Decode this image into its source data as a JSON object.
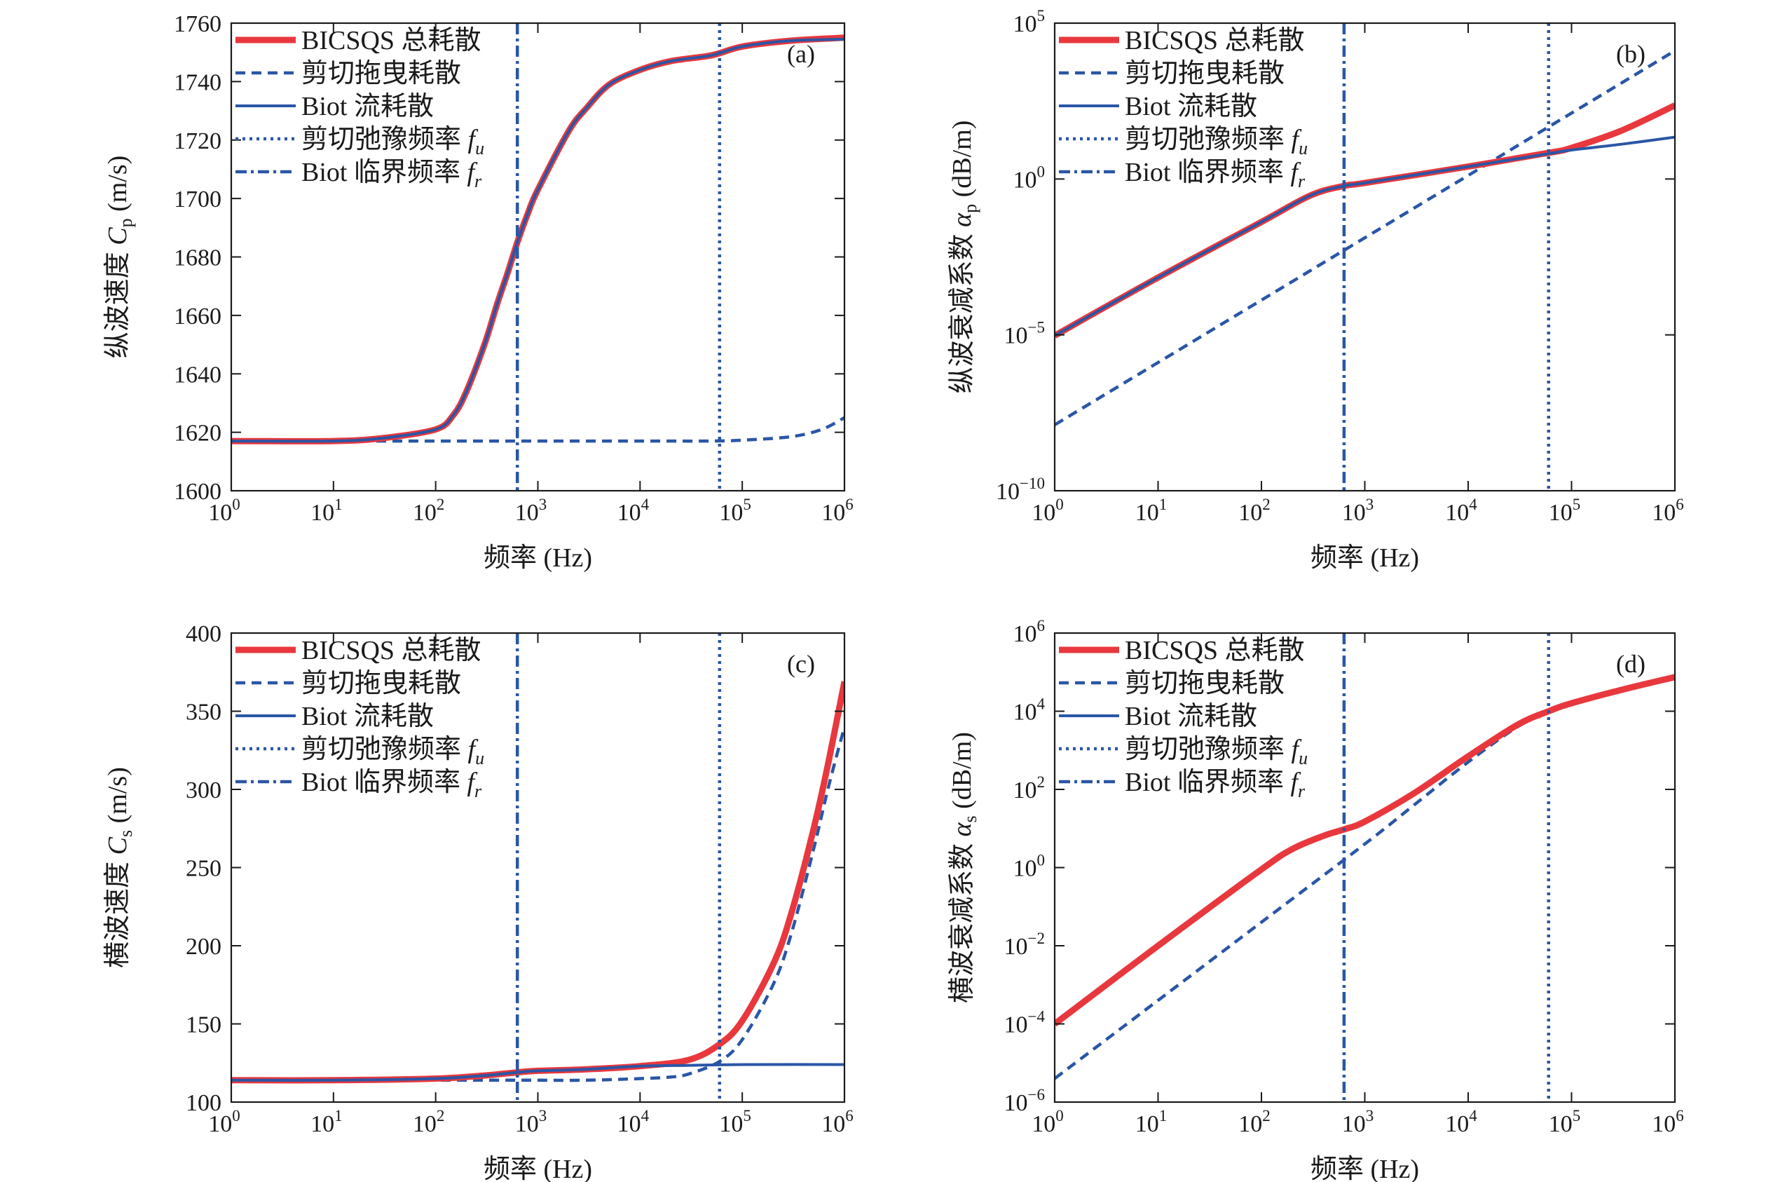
{
  "chart_data": [
    {
      "type": "line",
      "panel": "(a)",
      "xlabel": "频率 (Hz)",
      "xscale": "log",
      "xlim": [
        1,
        1000000
      ],
      "yscale": "linear",
      "ylim": [
        1600,
        1760
      ],
      "ylabel_parts": [
        {
          "t": "纵波速度 ",
          "i": false
        },
        {
          "t": "C",
          "i": true
        },
        {
          "t": "p",
          "sub": true
        },
        {
          "t": " (m/s)",
          "i": false
        }
      ],
      "yticks": [
        {
          "v": 1600,
          "label": "1600"
        },
        {
          "v": 1620,
          "label": "1620"
        },
        {
          "v": 1640,
          "label": "1640"
        },
        {
          "v": 1660,
          "label": "1660"
        },
        {
          "v": 1680,
          "label": "1680"
        },
        {
          "v": 1700,
          "label": "1700"
        },
        {
          "v": 1720,
          "label": "1720"
        },
        {
          "v": 1740,
          "label": "1740"
        },
        {
          "v": 1760,
          "label": "1760"
        }
      ],
      "legend": "top-left",
      "vlines": [
        {
          "x": 60000,
          "style": "dotted"
        },
        {
          "x": 630,
          "style": "dashdot"
        }
      ],
      "series": [
        {
          "name": "BICSQS 总耗散",
          "style": "solid-red",
          "x": [
            1,
            10,
            30,
            100,
            150,
            200,
            300,
            400,
            500,
            630,
            800,
            1000,
            2000,
            3000,
            5000,
            10000,
            20000,
            50000,
            100000,
            300000,
            1000000
          ],
          "y": [
            1617,
            1617,
            1618,
            1621,
            1626,
            1634,
            1650,
            1664,
            1674,
            1685,
            1695,
            1703,
            1723,
            1731,
            1739,
            1744,
            1747,
            1749,
            1752,
            1754,
            1755
          ]
        },
        {
          "name": "剪切拖曳耗散",
          "style": "dashed-blue",
          "x": [
            1,
            10,
            100,
            1000,
            10000,
            50000,
            100000,
            300000,
            600000,
            1000000
          ],
          "y": [
            1617,
            1617,
            1617,
            1617,
            1617,
            1617,
            1617.3,
            1618.5,
            1621,
            1625
          ]
        },
        {
          "name": "Biot 流耗散",
          "style": "solid-blue",
          "x": [
            1,
            10,
            30,
            100,
            150,
            200,
            300,
            400,
            500,
            630,
            800,
            1000,
            2000,
            3000,
            5000,
            10000,
            20000,
            50000,
            100000,
            300000,
            1000000
          ],
          "y": [
            1617,
            1617,
            1618,
            1621,
            1626,
            1634,
            1650,
            1664,
            1674,
            1685,
            1695,
            1703,
            1723,
            1731,
            1739,
            1744,
            1747,
            1749,
            1752,
            1754,
            1754.5
          ]
        },
        {
          "name": "剪切弛豫频率 ",
          "sym": "f",
          "symsub": "u",
          "style": "dotted-blue",
          "legend_only": true
        },
        {
          "name": "Biot 临界频率 ",
          "sym": "f",
          "symsub": "r",
          "style": "dashdot-blue",
          "legend_only": true
        }
      ]
    },
    {
      "type": "line",
      "panel": "(b)",
      "xlabel": "频率 (Hz)",
      "xscale": "log",
      "xlim": [
        1,
        1000000
      ],
      "yscale": "log",
      "ylim": [
        1e-10,
        100000
      ],
      "ylabel_parts": [
        {
          "t": "纵波衰减系数 ",
          "i": false
        },
        {
          "t": "α",
          "i": true
        },
        {
          "t": "p",
          "sub": true
        },
        {
          "t": " (dB/m)",
          "i": false
        }
      ],
      "yticks": [
        {
          "v": 1e-10,
          "base": "10",
          "exp": "−10"
        },
        {
          "v": 1e-05,
          "base": "10",
          "exp": "−5"
        },
        {
          "v": 1,
          "label": "10⁰"
        },
        {
          "v": 100000,
          "base": "10",
          "exp": "5"
        }
      ],
      "legend": "top-left",
      "vlines": [
        {
          "x": 60000,
          "style": "dotted"
        },
        {
          "x": 630,
          "style": "dashdot"
        }
      ],
      "series": [
        {
          "name": "BICSQS 总耗散",
          "style": "solid-red",
          "x": [
            1,
            10,
            100,
            300,
            630,
            1000,
            10000,
            60000,
            100000,
            300000,
            1000000
          ],
          "y": [
            9.5e-06,
            0.00069,
            0.042,
            0.3,
            0.6,
            0.75,
            2.5,
            6.9,
            10,
            35,
            230
          ]
        },
        {
          "name": "剪切拖曳耗散",
          "style": "dashed-blue",
          "x": [
            1,
            10,
            100,
            1000,
            10000,
            100000,
            1000000
          ],
          "y": [
            1.3e-08,
            1.3e-06,
            0.00013,
            0.013,
            1.3,
            130,
            13000
          ]
        },
        {
          "name": "Biot 流耗散",
          "style": "solid-blue",
          "x": [
            1,
            10,
            100,
            300,
            630,
            1000,
            10000,
            60000,
            100000,
            300000,
            1000000
          ],
          "y": [
            9.5e-06,
            0.00069,
            0.042,
            0.3,
            0.6,
            0.75,
            2.5,
            6.5,
            8.5,
            13,
            22
          ]
        },
        {
          "name": "剪切弛豫频率 ",
          "sym": "f",
          "symsub": "u",
          "style": "dotted-blue",
          "legend_only": true
        },
        {
          "name": "Biot 临界频率 ",
          "sym": "f",
          "symsub": "r",
          "style": "dashdot-blue",
          "legend_only": true
        }
      ]
    },
    {
      "type": "line",
      "panel": "(c)",
      "xlabel": "频率 (Hz)",
      "xscale": "log",
      "xlim": [
        1,
        1000000
      ],
      "yscale": "linear",
      "ylim": [
        100,
        400
      ],
      "ylabel_parts": [
        {
          "t": "横波速度 ",
          "i": false
        },
        {
          "t": "C",
          "i": true
        },
        {
          "t": "s",
          "sub": true
        },
        {
          "t": " (m/s)",
          "i": false
        }
      ],
      "yticks": [
        {
          "v": 100,
          "label": "100"
        },
        {
          "v": 150,
          "label": "150"
        },
        {
          "v": 200,
          "label": "200"
        },
        {
          "v": 250,
          "label": "250"
        },
        {
          "v": 300,
          "label": "300"
        },
        {
          "v": 350,
          "label": "350"
        },
        {
          "v": 400,
          "label": "400"
        }
      ],
      "legend": "top-left",
      "vlines": [
        {
          "x": 60000,
          "style": "dotted"
        },
        {
          "x": 630,
          "style": "dashdot"
        }
      ],
      "series": [
        {
          "name": "BICSQS 总耗散",
          "style": "solid-red",
          "x": [
            1,
            10,
            100,
            300,
            630,
            1000,
            3000,
            10000,
            30000,
            60000,
            100000,
            200000,
            300000,
            500000,
            700000,
            1000000
          ],
          "y": [
            114,
            114,
            115,
            117,
            119,
            120,
            121,
            123,
            127,
            137,
            152,
            188,
            220,
            275,
            318,
            369
          ]
        },
        {
          "name": "剪切拖曳耗散",
          "style": "dashed-blue",
          "x": [
            1,
            10,
            100,
            300,
            630,
            1000,
            3000,
            10000,
            20000,
            30000,
            60000,
            100000,
            200000,
            300000,
            500000,
            700000,
            1000000
          ],
          "y": [
            114,
            114,
            114,
            114,
            114,
            114,
            114,
            115,
            116,
            118,
            126,
            140,
            175,
            207,
            262,
            302,
            340
          ]
        },
        {
          "name": "Biot 流耗散",
          "style": "solid-blue",
          "x": [
            1,
            10,
            100,
            300,
            630,
            1000,
            3000,
            10000,
            30000,
            100000,
            1000000
          ],
          "y": [
            114,
            114,
            115,
            117,
            119,
            120,
            121,
            123,
            123.5,
            124,
            124
          ]
        },
        {
          "name": "剪切弛豫频率 ",
          "sym": "f",
          "symsub": "u",
          "style": "dotted-blue",
          "legend_only": true
        },
        {
          "name": "Biot 临界频率 ",
          "sym": "f",
          "symsub": "r",
          "style": "dashdot-blue",
          "legend_only": true
        }
      ]
    },
    {
      "type": "line",
      "panel": "(d)",
      "xlabel": "频率 (Hz)",
      "xscale": "log",
      "xlim": [
        1,
        1000000
      ],
      "yscale": "log",
      "ylim": [
        1e-06,
        1000000
      ],
      "ylabel_parts": [
        {
          "t": "横波衰减系数 ",
          "i": false
        },
        {
          "t": "α",
          "i": true
        },
        {
          "t": "s",
          "sub": true
        },
        {
          "t": " (dB/m)",
          "i": false
        }
      ],
      "yticks": [
        {
          "v": 1e-06,
          "base": "10",
          "exp": "−6"
        },
        {
          "v": 0.0001,
          "base": "10",
          "exp": "−4"
        },
        {
          "v": 0.01,
          "base": "10",
          "exp": "−2"
        },
        {
          "v": 1,
          "label": "10⁰"
        },
        {
          "v": 100,
          "base": "10",
          "exp": "2"
        },
        {
          "v": 10000,
          "base": "10",
          "exp": "4"
        },
        {
          "v": 1000000,
          "base": "10",
          "exp": "6"
        }
      ],
      "legend": "top-left",
      "vlines": [
        {
          "x": 60000,
          "style": "dotted"
        },
        {
          "x": 630,
          "style": "dashdot"
        }
      ],
      "series": [
        {
          "name": "BICSQS 总耗散",
          "style": "solid-red",
          "x": [
            1,
            10,
            100,
            200,
            400,
            630,
            1000,
            3000,
            10000,
            30000,
            60000,
            100000,
            300000,
            1000000
          ],
          "y": [
            0.0001,
            0.01,
            0.9,
            3,
            6.5,
            9.5,
            15,
            80,
            700,
            4500,
            10000,
            16000,
            35000,
            75000
          ]
        },
        {
          "name": "剪切拖曳耗散",
          "style": "dashed-blue",
          "x": [
            1,
            10,
            100,
            1000,
            3000,
            10000,
            30000,
            60000,
            100000,
            300000,
            1000000
          ],
          "y": [
            4e-06,
            0.0004,
            0.04,
            4,
            40,
            500,
            4000,
            9500,
            15500,
            35000,
            75000
          ]
        },
        {
          "name": "Biot 流耗散",
          "style": "solid-blue",
          "x": [],
          "y": []
        },
        {
          "name": "剪切弛豫频率 ",
          "sym": "f",
          "symsub": "u",
          "style": "dotted-blue",
          "legend_only": true
        },
        {
          "name": "Biot 临界频率 ",
          "sym": "f",
          "symsub": "r",
          "style": "dashdot-blue",
          "legend_only": true
        }
      ]
    }
  ],
  "xticks": [
    {
      "v": 1,
      "exp": "0"
    },
    {
      "v": 10,
      "exp": "1"
    },
    {
      "v": 100,
      "exp": "2"
    },
    {
      "v": 1000,
      "exp": "3"
    },
    {
      "v": 10000,
      "exp": "4"
    },
    {
      "v": 100000,
      "exp": "5"
    },
    {
      "v": 1000000,
      "exp": "6"
    }
  ],
  "colors": {
    "red": "#e8383d",
    "blue": "#2a56a6",
    "axis": "#1a1a1a"
  }
}
